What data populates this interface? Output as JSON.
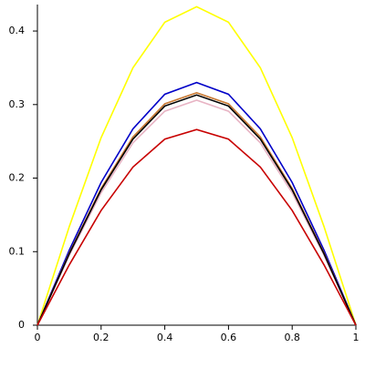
{
  "chart_data": {
    "type": "line",
    "x": [
      0,
      0.1,
      0.2,
      0.3,
      0.4,
      0.5,
      0.6,
      0.7,
      0.8,
      0.9,
      1
    ],
    "series": [
      {
        "color": "#ffff00",
        "values": [
          0,
          0.134,
          0.255,
          0.35,
          0.412,
          0.433,
          0.412,
          0.35,
          0.255,
          0.134,
          0
        ]
      },
      {
        "color": "#0000c8",
        "values": [
          0,
          0.102,
          0.194,
          0.267,
          0.314,
          0.33,
          0.314,
          0.267,
          0.194,
          0.102,
          0
        ]
      },
      {
        "color": "#e8b4c4",
        "values": [
          0,
          0.095,
          0.18,
          0.248,
          0.291,
          0.306,
          0.291,
          0.248,
          0.18,
          0.095,
          0
        ]
      },
      {
        "color": "#c87832",
        "values": [
          0,
          0.098,
          0.186,
          0.256,
          0.301,
          0.316,
          0.301,
          0.256,
          0.186,
          0.098,
          0
        ]
      },
      {
        "color": "#000000",
        "values": [
          0,
          0.097,
          0.184,
          0.253,
          0.298,
          0.313,
          0.298,
          0.253,
          0.184,
          0.097,
          0
        ]
      },
      {
        "color": "#c80000",
        "values": [
          0,
          0.082,
          0.156,
          0.215,
          0.253,
          0.266,
          0.253,
          0.215,
          0.156,
          0.082,
          0
        ]
      }
    ],
    "xlim": [
      0,
      1
    ],
    "xticks": [
      0,
      0.2,
      0.4,
      0.6,
      0.8,
      1
    ],
    "ylim": [
      0,
      0.436
    ],
    "yticks": [
      0,
      0.1,
      0.2,
      0.3,
      0.4
    ]
  }
}
